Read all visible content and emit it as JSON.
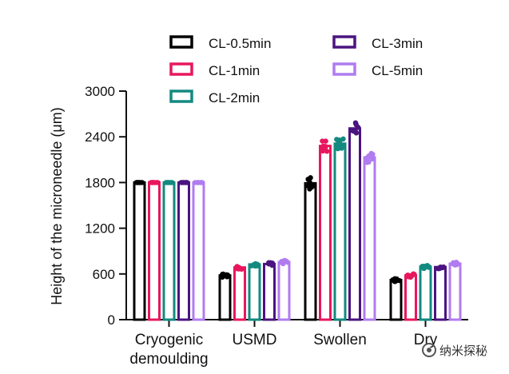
{
  "chart_data": {
    "type": "bar",
    "ylabel": "Height of the microneedle (μm)",
    "ylim": [
      0,
      3000
    ],
    "yticks": [
      "0",
      "600",
      "1200",
      "1800",
      "2400",
      "3000"
    ],
    "categories": [
      "Cryogenic\ndemoulding",
      "USMD",
      "Swollen",
      "Dry"
    ],
    "series": [
      {
        "name": "CL-0.5min",
        "color": "#000000",
        "values": [
          1800,
          580,
          1790,
          520
        ]
      },
      {
        "name": "CL-1min",
        "color": "#e8175d",
        "values": [
          1800,
          685,
          2280,
          580
        ]
      },
      {
        "name": "CL-2min",
        "color": "#138a80",
        "values": [
          1800,
          725,
          2310,
          695
        ]
      },
      {
        "name": "CL-3min",
        "color": "#4b1480",
        "values": [
          1800,
          730,
          2510,
          690
        ]
      },
      {
        "name": "CL-5min",
        "color": "#b07cf0",
        "values": [
          1800,
          755,
          2130,
          735
        ]
      }
    ],
    "legend_position": "top",
    "grid": false
  },
  "watermark": {
    "text": "纳米探秘",
    "icon": "wechat-eye-icon"
  },
  "corner_mark": "/ \\"
}
